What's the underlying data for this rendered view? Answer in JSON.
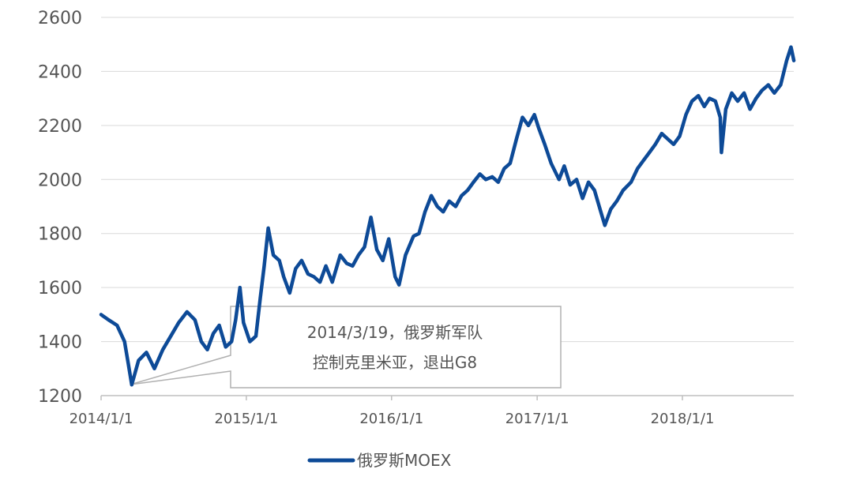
{
  "chart_data": {
    "type": "line",
    "title": "",
    "xlabel": "",
    "ylabel": "",
    "ylim": [
      1200,
      2600
    ],
    "yticks": [
      1200,
      1400,
      1600,
      1800,
      2000,
      2200,
      2400,
      2600
    ],
    "xticks": [
      "2014/1/1",
      "2015/1/1",
      "2016/1/1",
      "2017/1/1",
      "2018/1/1"
    ],
    "grid": "horizontal",
    "legend_position": "bottom-center",
    "series": [
      {
        "name": "俄罗斯MOEX",
        "color": "#0d4a97",
        "x": [
          "2014-01-01",
          "2014-01-20",
          "2014-02-10",
          "2014-03-01",
          "2014-03-10",
          "2014-03-19",
          "2014-04-05",
          "2014-04-25",
          "2014-05-15",
          "2014-06-05",
          "2014-06-25",
          "2014-07-15",
          "2014-08-05",
          "2014-08-25",
          "2014-09-10",
          "2014-09-25",
          "2014-10-10",
          "2014-10-25",
          "2014-11-10",
          "2014-11-25",
          "2014-12-05",
          "2014-12-16",
          "2014-12-25",
          "2015-01-10",
          "2015-01-25",
          "2015-02-05",
          "2015-02-15",
          "2015-02-25",
          "2015-03-10",
          "2015-03-25",
          "2015-04-05",
          "2015-04-20",
          "2015-05-05",
          "2015-05-20",
          "2015-06-05",
          "2015-06-20",
          "2015-07-05",
          "2015-07-20",
          "2015-08-05",
          "2015-08-25",
          "2015-09-10",
          "2015-09-25",
          "2015-10-10",
          "2015-10-25",
          "2015-11-10",
          "2015-11-25",
          "2015-12-10",
          "2015-12-25",
          "2016-01-10",
          "2016-01-20",
          "2016-02-05",
          "2016-02-25",
          "2016-03-10",
          "2016-03-25",
          "2016-04-10",
          "2016-04-25",
          "2016-05-10",
          "2016-05-25",
          "2016-06-10",
          "2016-06-25",
          "2016-07-10",
          "2016-07-25",
          "2016-08-10",
          "2016-08-25",
          "2016-09-10",
          "2016-09-25",
          "2016-10-10",
          "2016-10-25",
          "2016-11-10",
          "2016-11-25",
          "2016-12-10",
          "2016-12-25",
          "2017-01-05",
          "2017-01-20",
          "2017-02-05",
          "2017-02-25",
          "2017-03-10",
          "2017-03-25",
          "2017-04-10",
          "2017-04-25",
          "2017-05-10",
          "2017-05-25",
          "2017-06-10",
          "2017-06-20",
          "2017-07-05",
          "2017-07-20",
          "2017-08-05",
          "2017-08-25",
          "2017-09-10",
          "2017-09-25",
          "2017-10-10",
          "2017-10-25",
          "2017-11-10",
          "2017-11-25",
          "2017-12-10",
          "2017-12-25",
          "2018-01-10",
          "2018-01-25",
          "2018-02-10",
          "2018-02-25",
          "2018-03-10",
          "2018-03-25",
          "2018-04-06",
          "2018-04-09",
          "2018-04-20",
          "2018-05-05",
          "2018-05-20",
          "2018-06-05",
          "2018-06-20",
          "2018-07-05",
          "2018-07-20",
          "2018-08-05",
          "2018-08-20",
          "2018-09-05",
          "2018-09-20",
          "2018-10-01",
          "2018-10-08"
        ],
        "y": [
          1500,
          1480,
          1460,
          1400,
          1320,
          1240,
          1330,
          1360,
          1300,
          1370,
          1420,
          1470,
          1510,
          1480,
          1400,
          1370,
          1430,
          1460,
          1380,
          1400,
          1480,
          1600,
          1470,
          1400,
          1420,
          1560,
          1680,
          1820,
          1720,
          1700,
          1640,
          1580,
          1670,
          1700,
          1650,
          1640,
          1620,
          1680,
          1620,
          1720,
          1690,
          1680,
          1720,
          1750,
          1860,
          1740,
          1700,
          1780,
          1640,
          1610,
          1720,
          1790,
          1800,
          1880,
          1940,
          1900,
          1880,
          1920,
          1900,
          1940,
          1960,
          1990,
          2020,
          2000,
          2010,
          1990,
          2040,
          2060,
          2150,
          2230,
          2200,
          2240,
          2190,
          2130,
          2060,
          2000,
          2050,
          1980,
          2000,
          1930,
          1990,
          1960,
          1880,
          1830,
          1890,
          1920,
          1960,
          1990,
          2040,
          2070,
          2100,
          2130,
          2170,
          2150,
          2130,
          2160,
          2240,
          2290,
          2310,
          2270,
          2300,
          2290,
          2230,
          2100,
          2260,
          2320,
          2290,
          2320,
          2260,
          2300,
          2330,
          2350,
          2320,
          2350,
          2440,
          2490,
          2440
        ]
      }
    ],
    "annotations": [
      {
        "lines": [
          "2014/3/19，俄罗斯军队",
          "控制克里米亚，退出G8"
        ]
      }
    ]
  }
}
